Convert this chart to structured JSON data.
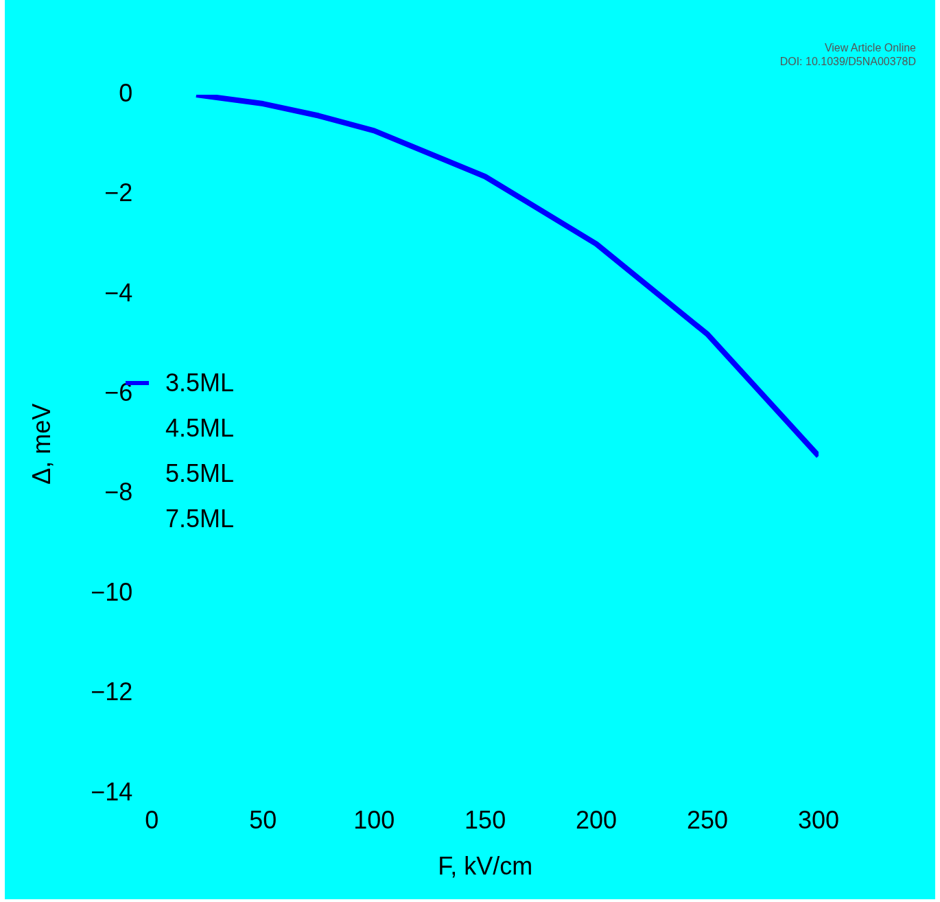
{
  "chart_data": {
    "type": "line",
    "xlabel": "F, kV/cm",
    "ylabel": "Δ, meV",
    "x": [
      20,
      50,
      75,
      100,
      150,
      200,
      250,
      300
    ],
    "series": [
      {
        "name": "3.5ML",
        "color": "#0000ff",
        "values": [
          0,
          -0.18,
          -0.42,
          -0.72,
          -1.64,
          -2.99,
          -4.8,
          -7.24
        ]
      },
      {
        "name": "4.5ML",
        "values": [
          null,
          null,
          null,
          null,
          null,
          null,
          null,
          null
        ]
      },
      {
        "name": "5.5ML",
        "values": [
          null,
          null,
          null,
          null,
          null,
          null,
          null,
          null
        ]
      },
      {
        "name": "7.5ML",
        "values": [
          null,
          null,
          null,
          null,
          null,
          null,
          null,
          null
        ]
      }
    ],
    "xlim": [
      0,
      300
    ],
    "xticks": [
      0,
      50,
      100,
      150,
      200,
      250,
      300
    ],
    "ylim": [
      -14,
      0
    ],
    "yticks": [
      0,
      -2,
      -4,
      -6,
      -8,
      -10,
      -12,
      -14
    ],
    "grid": false,
    "legend": "left",
    "marker": "none",
    "line_style": "solid",
    "annotations": [
      "View Article Online",
      "DOI: 10.1039/D5NA00378D"
    ]
  }
}
